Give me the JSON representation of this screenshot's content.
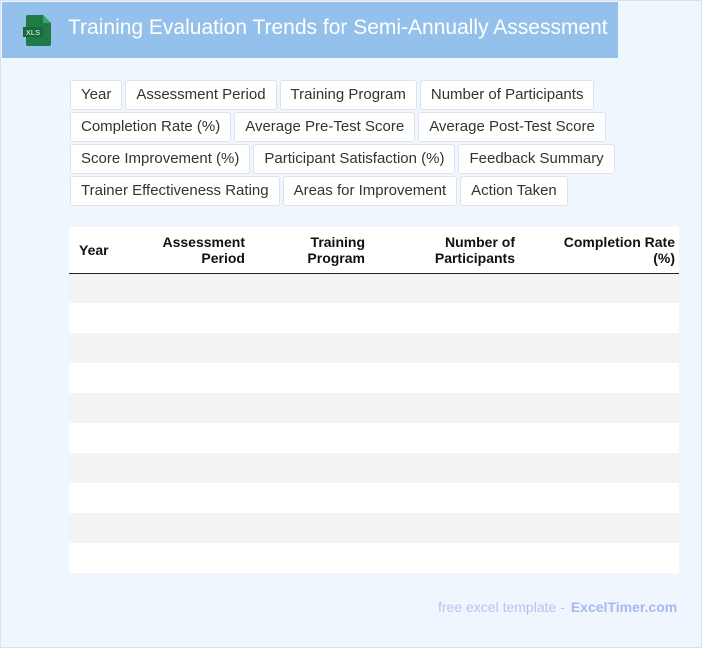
{
  "header": {
    "title": "Training Evaluation Trends for Semi-Annually Assessment",
    "icon": "xls-file-icon",
    "icon_label": "XLS",
    "background": "#93c1ec"
  },
  "chips": [
    "Year",
    "Assessment Period",
    "Training Program",
    "Number of Participants",
    "Completion Rate (%)",
    "Average Pre-Test Score",
    "Average Post-Test Score",
    "Score Improvement (%)",
    "Participant Satisfaction (%)",
    "Feedback Summary",
    "Trainer Effectiveness Rating",
    "Areas for Improvement",
    "Action Taken"
  ],
  "table": {
    "columns": [
      [
        "Year"
      ],
      [
        "Assessment",
        "Period"
      ],
      [
        "Training",
        "Program"
      ],
      [
        "Number of",
        "Participants"
      ],
      [
        "Completion Rate",
        "(%)"
      ]
    ],
    "row_count": 10
  },
  "footer": {
    "text": "free excel template -",
    "brand": "ExcelTimer.com"
  }
}
